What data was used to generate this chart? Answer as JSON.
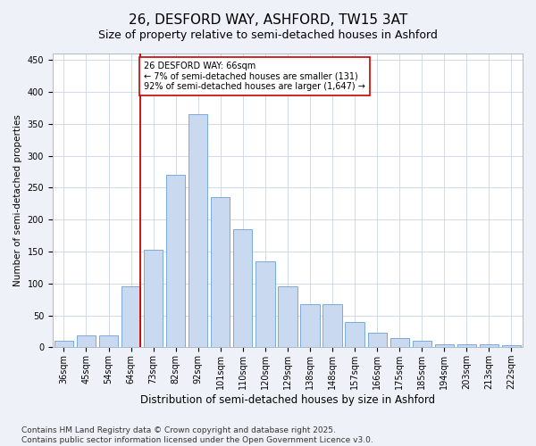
{
  "title": "26, DESFORD WAY, ASHFORD, TW15 3AT",
  "subtitle": "Size of property relative to semi-detached houses in Ashford",
  "xlabel": "Distribution of semi-detached houses by size in Ashford",
  "ylabel": "Number of semi-detached properties",
  "categories": [
    "36sqm",
    "45sqm",
    "54sqm",
    "64sqm",
    "73sqm",
    "82sqm",
    "92sqm",
    "101sqm",
    "110sqm",
    "120sqm",
    "129sqm",
    "138sqm",
    "148sqm",
    "157sqm",
    "166sqm",
    "175sqm",
    "185sqm",
    "194sqm",
    "203sqm",
    "213sqm",
    "222sqm"
  ],
  "values": [
    10,
    18,
    18,
    95,
    152,
    270,
    365,
    235,
    185,
    135,
    95,
    67,
    67,
    40,
    23,
    15,
    10,
    5,
    5,
    5,
    3
  ],
  "bar_color": "#c9d9f0",
  "bar_edge_color": "#6a9fd8",
  "property_line_color": "#cc0000",
  "annotation_text": "26 DESFORD WAY: 66sqm\n← 7% of semi-detached houses are smaller (131)\n92% of semi-detached houses are larger (1,647) →",
  "annotation_box_color": "#cc0000",
  "ylim": [
    0,
    460
  ],
  "yticks": [
    0,
    50,
    100,
    150,
    200,
    250,
    300,
    350,
    400,
    450
  ],
  "footer_text": "Contains HM Land Registry data © Crown copyright and database right 2025.\nContains public sector information licensed under the Open Government Licence v3.0.",
  "bg_color": "#eef2f8",
  "plot_bg_color": "#ffffff",
  "grid_color": "#c8d4e8",
  "title_fontsize": 11,
  "subtitle_fontsize": 9,
  "xlabel_fontsize": 8.5,
  "ylabel_fontsize": 7.5,
  "tick_fontsize": 7,
  "annot_fontsize": 7,
  "footer_fontsize": 6.5
}
